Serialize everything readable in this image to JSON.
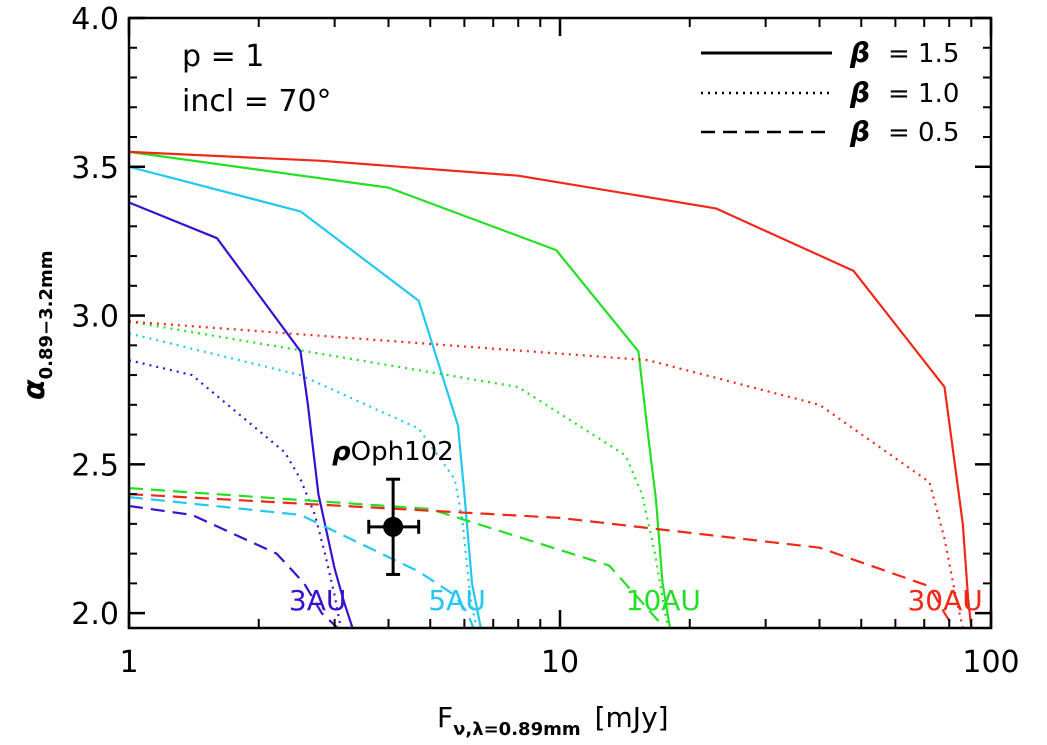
{
  "chart_data": {
    "type": "line",
    "title": "",
    "xlabel": "F",
    "xlabel_sub": "ν,λ=0.89mm",
    "xlabel_unit": "[mJy]",
    "ylabel": "α",
    "ylabel_sub": "0.89−3.2mm",
    "xscale": "log",
    "xlim": [
      1,
      100
    ],
    "ylim": [
      1.95,
      4.0
    ],
    "xticks": [
      {
        "value": 1,
        "label": "1"
      },
      {
        "value": 10,
        "label": "10"
      },
      {
        "value": 100,
        "label": "100"
      }
    ],
    "yticks": [
      {
        "value": 2.0,
        "label": "2.0"
      },
      {
        "value": 2.5,
        "label": "2.5"
      },
      {
        "value": 3.0,
        "label": "3.0"
      },
      {
        "value": 3.5,
        "label": "3.5"
      },
      {
        "value": 4.0,
        "label": "4.0"
      }
    ],
    "grid": false,
    "annotations": {
      "param_p": "p  =  1",
      "param_incl": "incl  =  70°"
    },
    "legend": {
      "placement": "top-right",
      "entries": [
        {
          "symbol": "β",
          "text": "= 1.5",
          "style": "solid"
        },
        {
          "symbol": "β",
          "text": "= 1.0",
          "style": "dotted"
        },
        {
          "symbol": "β",
          "text": "= 0.5",
          "style": "dashed"
        }
      ]
    },
    "radius_labels": [
      {
        "text": "3AU",
        "color": "#3a10d0",
        "x": 2.35,
        "y": 2.01
      },
      {
        "text": "5AU",
        "color": "#22c8f0",
        "x": 4.95,
        "y": 2.01
      },
      {
        "text": "10AU",
        "color": "#22e022",
        "x": 14.2,
        "y": 2.01
      },
      {
        "text": "30AU",
        "color": "#f02818",
        "x": 64.0,
        "y": 2.01
      }
    ],
    "point": {
      "label_symbol": "ρ",
      "label_text": "Oph102",
      "x": 4.1,
      "y": 2.29,
      "xerr": [
        3.6,
        4.7
      ],
      "yerr": [
        2.13,
        2.45
      ]
    },
    "series": [
      {
        "name": "3AU",
        "beta": 1.5,
        "style": "solid",
        "color": "#3a10d0",
        "points": [
          [
            1.0,
            3.38
          ],
          [
            1.6,
            3.26
          ],
          [
            2.5,
            2.88
          ],
          [
            2.6,
            2.7
          ],
          [
            2.75,
            2.4
          ],
          [
            3.0,
            2.15
          ],
          [
            3.15,
            2.04
          ],
          [
            3.3,
            1.95
          ]
        ]
      },
      {
        "name": "3AU",
        "beta": 1.0,
        "style": "dotted",
        "color": "#3a10d0",
        "points": [
          [
            1.0,
            2.85
          ],
          [
            1.4,
            2.8
          ],
          [
            2.3,
            2.54
          ],
          [
            2.5,
            2.45
          ],
          [
            2.7,
            2.33
          ],
          [
            2.85,
            2.2
          ],
          [
            3.0,
            2.06
          ],
          [
            3.1,
            1.95
          ]
        ]
      },
      {
        "name": "3AU",
        "beta": 0.5,
        "style": "dashed",
        "color": "#3a10d0",
        "points": [
          [
            1.0,
            2.36
          ],
          [
            1.4,
            2.33
          ],
          [
            2.2,
            2.2
          ],
          [
            2.55,
            2.1
          ],
          [
            2.8,
            2.0
          ],
          [
            3.05,
            1.95
          ]
        ]
      },
      {
        "name": "5AU",
        "beta": 1.5,
        "style": "solid",
        "color": "#22c8f0",
        "points": [
          [
            1.0,
            3.5
          ],
          [
            2.5,
            3.35
          ],
          [
            4.7,
            3.05
          ],
          [
            5.8,
            2.63
          ],
          [
            6.0,
            2.4
          ],
          [
            6.25,
            2.1
          ],
          [
            6.55,
            1.95
          ]
        ]
      },
      {
        "name": "5AU",
        "beta": 1.0,
        "style": "dotted",
        "color": "#22c8f0",
        "points": [
          [
            1.0,
            2.94
          ],
          [
            2.5,
            2.8
          ],
          [
            4.7,
            2.62
          ],
          [
            5.7,
            2.45
          ],
          [
            5.95,
            2.3
          ],
          [
            6.2,
            2.05
          ],
          [
            6.4,
            1.95
          ]
        ]
      },
      {
        "name": "5AU",
        "beta": 0.5,
        "style": "dashed",
        "color": "#22c8f0",
        "points": [
          [
            1.0,
            2.39
          ],
          [
            2.5,
            2.33
          ],
          [
            4.7,
            2.14
          ],
          [
            5.7,
            2.06
          ],
          [
            6.1,
            2.0
          ],
          [
            6.3,
            1.95
          ]
        ]
      },
      {
        "name": "10AU",
        "beta": 1.5,
        "style": "solid",
        "color": "#22e022",
        "points": [
          [
            1.0,
            3.55
          ],
          [
            4.0,
            3.43
          ],
          [
            9.8,
            3.22
          ],
          [
            15.2,
            2.88
          ],
          [
            16.0,
            2.6
          ],
          [
            16.7,
            2.38
          ],
          [
            17.3,
            2.1
          ],
          [
            18.0,
            1.95
          ]
        ]
      },
      {
        "name": "10AU",
        "beta": 1.0,
        "style": "dotted",
        "color": "#22e022",
        "points": [
          [
            1.0,
            2.98
          ],
          [
            8.0,
            2.76
          ],
          [
            14.2,
            2.53
          ],
          [
            15.5,
            2.4
          ],
          [
            16.6,
            2.2
          ],
          [
            17.3,
            2.05
          ],
          [
            17.8,
            1.95
          ]
        ]
      },
      {
        "name": "10AU",
        "beta": 0.5,
        "style": "dashed",
        "color": "#22e022",
        "points": [
          [
            1.0,
            2.42
          ],
          [
            5.0,
            2.35
          ],
          [
            13.0,
            2.16
          ],
          [
            15.2,
            2.05
          ],
          [
            17.0,
            1.97
          ],
          [
            17.5,
            1.95
          ]
        ]
      },
      {
        "name": "30AU",
        "beta": 1.5,
        "style": "solid",
        "color": "#f02818",
        "points": [
          [
            1.0,
            3.55
          ],
          [
            2.8,
            3.52
          ],
          [
            8.0,
            3.47
          ],
          [
            23.0,
            3.36
          ],
          [
            48.0,
            3.15
          ],
          [
            78.0,
            2.76
          ],
          [
            86.0,
            2.3
          ],
          [
            88.5,
            2.05
          ],
          [
            90.0,
            1.95
          ]
        ]
      },
      {
        "name": "30AU",
        "beta": 1.0,
        "style": "dotted",
        "color": "#f02818",
        "points": [
          [
            1.0,
            2.98
          ],
          [
            16.0,
            2.85
          ],
          [
            40.0,
            2.7
          ],
          [
            72.0,
            2.44
          ],
          [
            78.0,
            2.25
          ],
          [
            83.0,
            2.05
          ],
          [
            86.0,
            1.95
          ]
        ]
      },
      {
        "name": "30AU",
        "beta": 0.5,
        "style": "dashed",
        "color": "#f02818",
        "points": [
          [
            1.0,
            2.4
          ],
          [
            10.0,
            2.32
          ],
          [
            40.0,
            2.22
          ],
          [
            72.0,
            2.09
          ],
          [
            78.0,
            2.0
          ],
          [
            82.0,
            1.95
          ]
        ]
      }
    ]
  }
}
